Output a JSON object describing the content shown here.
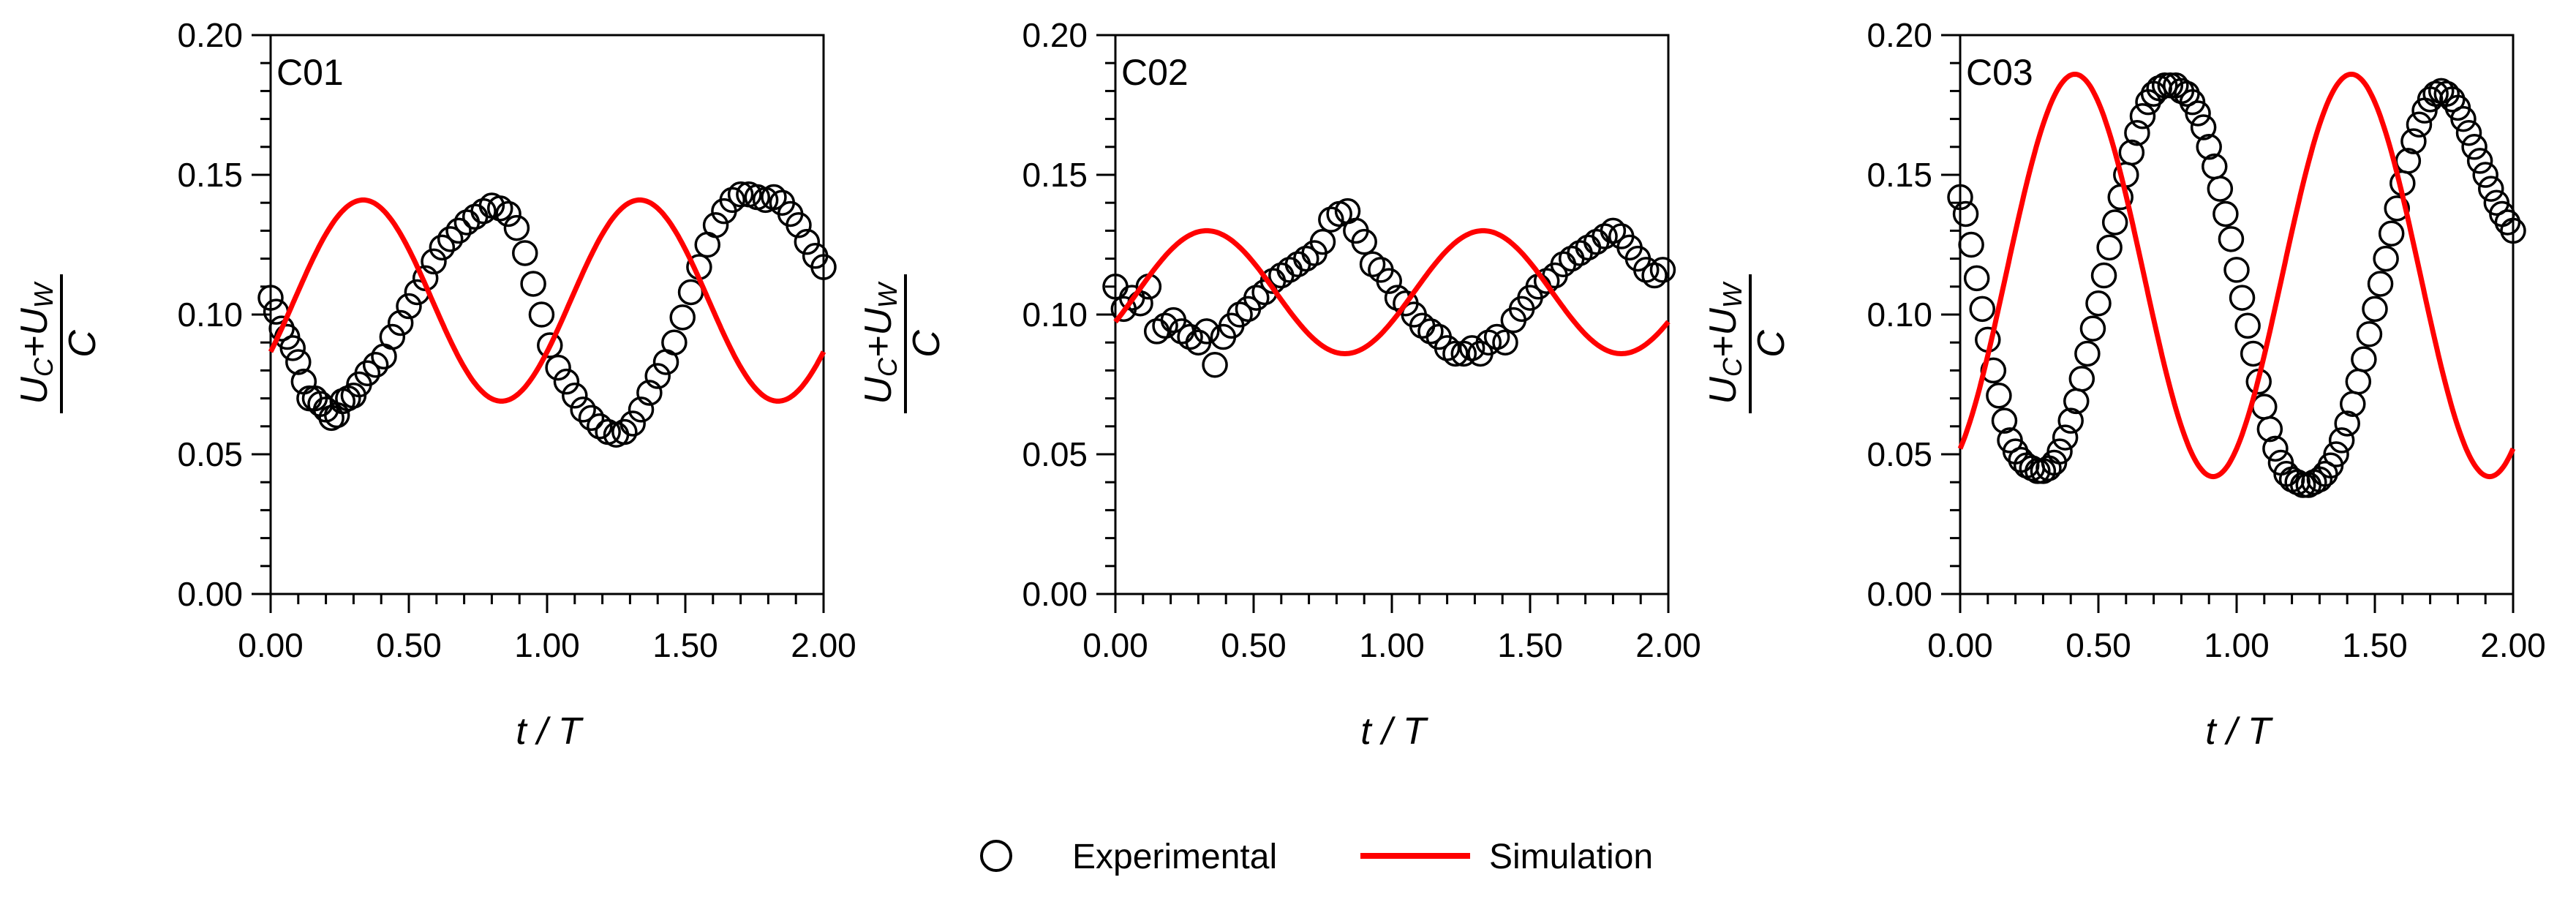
{
  "legend": {
    "experimental": "Experimental",
    "simulation": "Simulation"
  },
  "colors": {
    "simulation": "#ff0000",
    "experimental": "#000000",
    "axes": "#000000"
  },
  "chart_data": [
    {
      "type": "scatter",
      "title": "C01",
      "xlabel": "t / T",
      "ylabel": "Uc+Uw / C",
      "xlim": [
        0,
        2
      ],
      "ylim": [
        0,
        0.2
      ],
      "xticks": [
        "0.00",
        "0.50",
        "1.00",
        "1.50",
        "2.00"
      ],
      "yticks": [
        "0.00",
        "0.05",
        "0.10",
        "0.15",
        "0.20"
      ],
      "series": [
        {
          "name": "Experimental",
          "marker": "open-circle",
          "x": [
            0.0,
            0.02,
            0.04,
            0.06,
            0.08,
            0.1,
            0.12,
            0.14,
            0.16,
            0.18,
            0.2,
            0.22,
            0.24,
            0.26,
            0.28,
            0.3,
            0.32,
            0.35,
            0.38,
            0.41,
            0.44,
            0.47,
            0.5,
            0.53,
            0.56,
            0.59,
            0.62,
            0.65,
            0.68,
            0.71,
            0.74,
            0.77,
            0.8,
            0.83,
            0.86,
            0.89,
            0.92,
            0.95,
            0.98,
            1.01,
            1.04,
            1.07,
            1.1,
            1.13,
            1.16,
            1.19,
            1.22,
            1.25,
            1.28,
            1.31,
            1.34,
            1.37,
            1.4,
            1.43,
            1.46,
            1.49,
            1.52,
            1.55,
            1.58,
            1.61,
            1.64,
            1.67,
            1.7,
            1.73,
            1.76,
            1.79,
            1.82,
            1.85,
            1.88,
            1.91,
            1.94,
            1.97,
            2.0
          ],
          "y": [
            0.106,
            0.101,
            0.095,
            0.092,
            0.088,
            0.083,
            0.076,
            0.07,
            0.07,
            0.068,
            0.066,
            0.063,
            0.064,
            0.069,
            0.07,
            0.071,
            0.075,
            0.079,
            0.082,
            0.085,
            0.092,
            0.097,
            0.103,
            0.108,
            0.113,
            0.119,
            0.124,
            0.127,
            0.13,
            0.133,
            0.135,
            0.137,
            0.139,
            0.138,
            0.136,
            0.131,
            0.122,
            0.111,
            0.1,
            0.089,
            0.081,
            0.076,
            0.071,
            0.066,
            0.063,
            0.06,
            0.058,
            0.057,
            0.058,
            0.061,
            0.066,
            0.072,
            0.078,
            0.083,
            0.09,
            0.099,
            0.108,
            0.117,
            0.125,
            0.132,
            0.137,
            0.141,
            0.143,
            0.143,
            0.142,
            0.141,
            0.142,
            0.14,
            0.136,
            0.132,
            0.126,
            0.121,
            0.117
          ]
        },
        {
          "name": "Simulation",
          "type": "line",
          "mean": 0.105,
          "amplitude": 0.036,
          "phase": -0.085
        }
      ]
    },
    {
      "type": "scatter",
      "title": "C02",
      "xlabel": "t / T",
      "ylabel": "Uc+Uw / C",
      "xlim": [
        0,
        2
      ],
      "ylim": [
        0,
        0.2
      ],
      "xticks": [
        "0.00",
        "0.50",
        "1.00",
        "1.50",
        "2.00"
      ],
      "yticks": [
        "0.00",
        "0.05",
        "0.10",
        "0.15",
        "0.20"
      ],
      "series": [
        {
          "name": "Experimental",
          "marker": "open-circle",
          "x": [
            0.0,
            0.03,
            0.06,
            0.09,
            0.12,
            0.15,
            0.18,
            0.21,
            0.24,
            0.27,
            0.3,
            0.33,
            0.36,
            0.39,
            0.42,
            0.45,
            0.48,
            0.51,
            0.54,
            0.57,
            0.6,
            0.63,
            0.66,
            0.69,
            0.72,
            0.75,
            0.78,
            0.81,
            0.84,
            0.87,
            0.9,
            0.93,
            0.96,
            0.99,
            1.02,
            1.05,
            1.08,
            1.11,
            1.14,
            1.17,
            1.2,
            1.23,
            1.26,
            1.29,
            1.32,
            1.35,
            1.38,
            1.41,
            1.44,
            1.47,
            1.5,
            1.53,
            1.56,
            1.59,
            1.62,
            1.65,
            1.68,
            1.71,
            1.74,
            1.77,
            1.8,
            1.83,
            1.86,
            1.89,
            1.92,
            1.95,
            1.98
          ],
          "y": [
            0.11,
            0.102,
            0.106,
            0.104,
            0.11,
            0.094,
            0.096,
            0.098,
            0.094,
            0.092,
            0.09,
            0.094,
            0.082,
            0.092,
            0.096,
            0.1,
            0.102,
            0.106,
            0.108,
            0.112,
            0.114,
            0.116,
            0.118,
            0.12,
            0.122,
            0.126,
            0.134,
            0.136,
            0.137,
            0.13,
            0.126,
            0.118,
            0.116,
            0.112,
            0.106,
            0.104,
            0.1,
            0.096,
            0.094,
            0.092,
            0.088,
            0.086,
            0.086,
            0.088,
            0.086,
            0.09,
            0.092,
            0.09,
            0.098,
            0.102,
            0.106,
            0.11,
            0.112,
            0.114,
            0.118,
            0.12,
            0.122,
            0.124,
            0.126,
            0.128,
            0.13,
            0.128,
            0.124,
            0.12,
            0.116,
            0.114,
            0.116
          ]
        },
        {
          "name": "Simulation",
          "type": "line",
          "mean": 0.108,
          "amplitude": 0.022,
          "phase": -0.08
        }
      ]
    },
    {
      "type": "scatter",
      "title": "C03",
      "xlabel": "t / T",
      "ylabel": "Uc+Uw / C",
      "xlim": [
        0,
        2
      ],
      "ylim": [
        0,
        0.2
      ],
      "xticks": [
        "0.00",
        "0.50",
        "1.00",
        "1.50",
        "2.00"
      ],
      "yticks": [
        "0.00",
        "0.05",
        "0.10",
        "0.15",
        "0.20"
      ],
      "series": [
        {
          "name": "Experimental",
          "marker": "open-circle",
          "x": [
            0.0,
            0.02,
            0.04,
            0.06,
            0.08,
            0.1,
            0.12,
            0.14,
            0.16,
            0.18,
            0.2,
            0.22,
            0.24,
            0.26,
            0.28,
            0.3,
            0.32,
            0.34,
            0.36,
            0.38,
            0.4,
            0.42,
            0.44,
            0.46,
            0.48,
            0.5,
            0.52,
            0.54,
            0.56,
            0.58,
            0.6,
            0.62,
            0.64,
            0.66,
            0.68,
            0.7,
            0.72,
            0.74,
            0.76,
            0.78,
            0.8,
            0.82,
            0.84,
            0.86,
            0.88,
            0.9,
            0.92,
            0.94,
            0.96,
            0.98,
            1.0,
            1.02,
            1.04,
            1.06,
            1.08,
            1.1,
            1.12,
            1.14,
            1.16,
            1.18,
            1.2,
            1.22,
            1.24,
            1.26,
            1.28,
            1.3,
            1.32,
            1.34,
            1.36,
            1.38,
            1.4,
            1.42,
            1.44,
            1.46,
            1.48,
            1.5,
            1.52,
            1.54,
            1.56,
            1.58,
            1.6,
            1.62,
            1.64,
            1.66,
            1.68,
            1.7,
            1.72,
            1.74,
            1.76,
            1.78,
            1.8,
            1.82,
            1.84,
            1.86,
            1.88,
            1.9,
            1.92,
            1.94,
            1.96,
            1.98,
            2.0
          ],
          "y": [
            0.142,
            0.136,
            0.125,
            0.113,
            0.102,
            0.091,
            0.08,
            0.071,
            0.062,
            0.055,
            0.051,
            0.048,
            0.046,
            0.045,
            0.044,
            0.044,
            0.045,
            0.047,
            0.051,
            0.056,
            0.062,
            0.069,
            0.077,
            0.086,
            0.095,
            0.104,
            0.114,
            0.124,
            0.133,
            0.142,
            0.15,
            0.158,
            0.165,
            0.171,
            0.176,
            0.179,
            0.181,
            0.182,
            0.182,
            0.182,
            0.18,
            0.179,
            0.176,
            0.172,
            0.167,
            0.16,
            0.153,
            0.145,
            0.136,
            0.127,
            0.116,
            0.106,
            0.096,
            0.086,
            0.076,
            0.067,
            0.059,
            0.052,
            0.047,
            0.043,
            0.041,
            0.04,
            0.039,
            0.039,
            0.04,
            0.041,
            0.043,
            0.046,
            0.05,
            0.055,
            0.061,
            0.068,
            0.076,
            0.084,
            0.093,
            0.102,
            0.111,
            0.12,
            0.129,
            0.138,
            0.147,
            0.155,
            0.162,
            0.168,
            0.173,
            0.177,
            0.179,
            0.18,
            0.179,
            0.177,
            0.174,
            0.17,
            0.165,
            0.16,
            0.155,
            0.15,
            0.145,
            0.14,
            0.136,
            0.133,
            0.13
          ]
        },
        {
          "name": "Simulation",
          "type": "line",
          "mean": 0.114,
          "amplitude": 0.072,
          "phase": -0.165
        }
      ]
    }
  ]
}
